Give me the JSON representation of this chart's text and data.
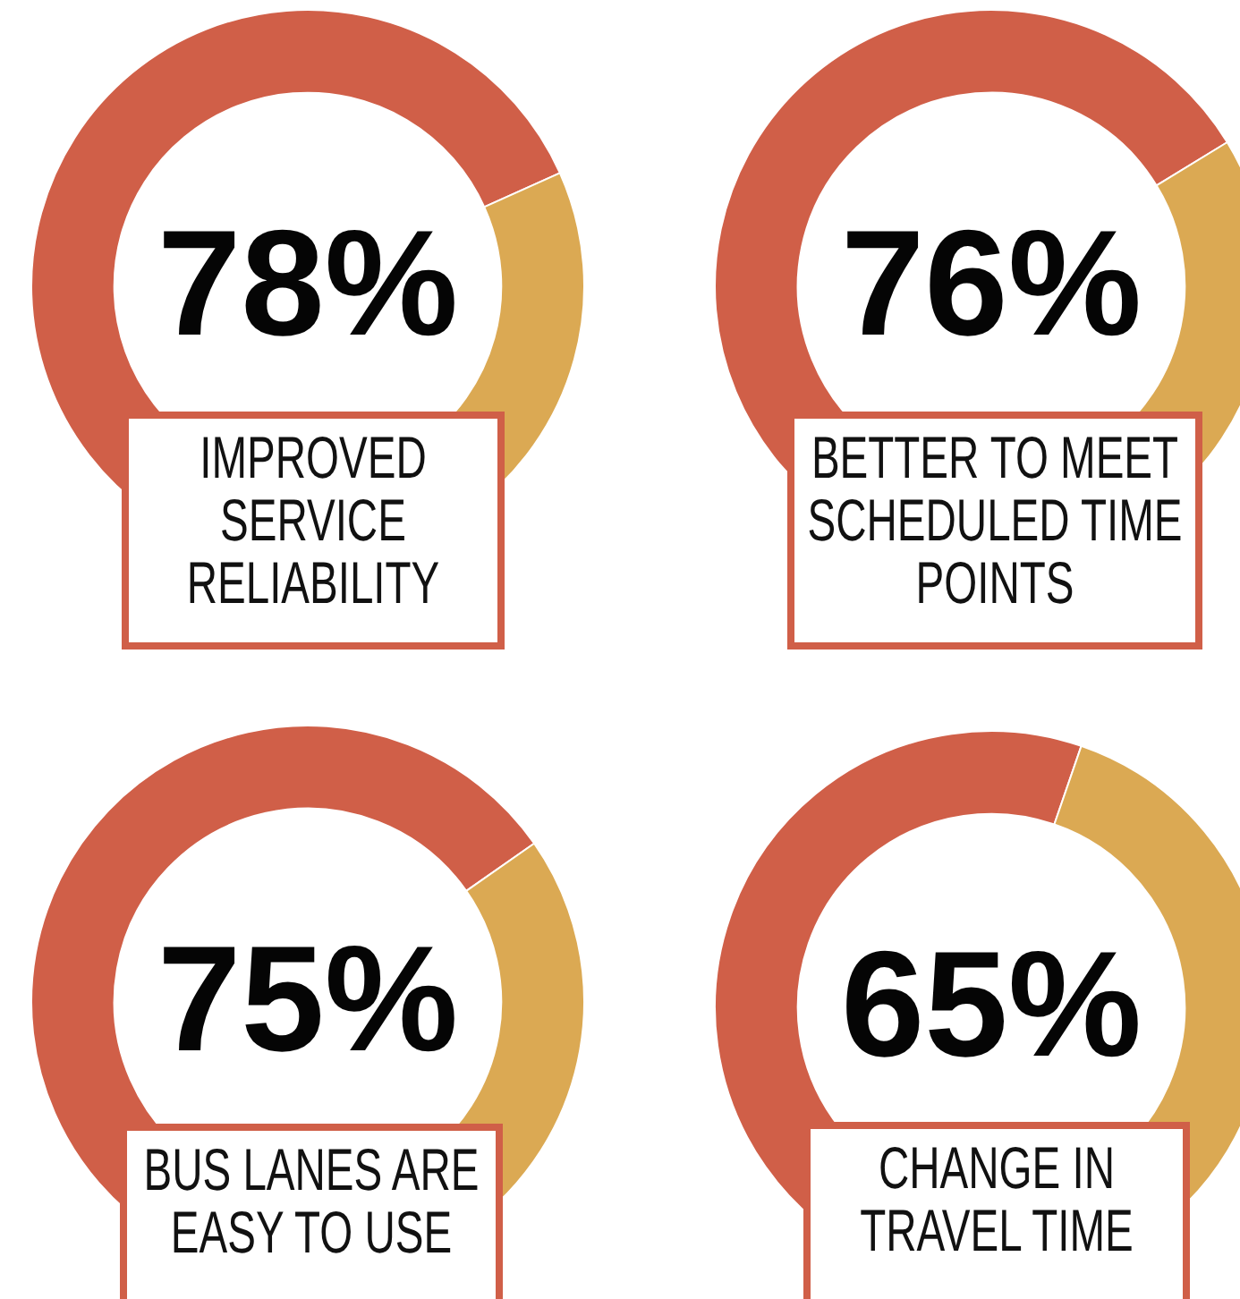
{
  "chart_data": [
    {
      "type": "donut",
      "title": "IMPROVED SERVICE RELIABILITY",
      "categories": [
        null,
        null
      ],
      "values": [
        78,
        22
      ],
      "colors": [
        "#d05f48",
        "#dba953"
      ],
      "value_labels": [
        "78%",
        null
      ]
    },
    {
      "type": "donut",
      "title": "BETTER TO MEET SCHEDULED TIME POINTS",
      "categories": [
        null,
        null
      ],
      "values": [
        76,
        24
      ],
      "colors": [
        "#d05f48",
        "#dba953"
      ],
      "value_labels": [
        "76%",
        null
      ]
    },
    {
      "type": "donut",
      "title": "BUS LANES ARE EASY TO USE",
      "categories": [
        null,
        null
      ],
      "values": [
        75,
        25
      ],
      "colors": [
        "#d05f48",
        "#dba953"
      ],
      "value_labels": [
        "75%",
        null
      ]
    },
    {
      "type": "donut",
      "title": "CHANGE IN TRAVEL TIME",
      "categories": [
        null,
        null
      ],
      "values": [
        65,
        35
      ],
      "colors": [
        "#d05f48",
        "#dba953"
      ],
      "value_labels": [
        "65%",
        null
      ]
    }
  ]
}
